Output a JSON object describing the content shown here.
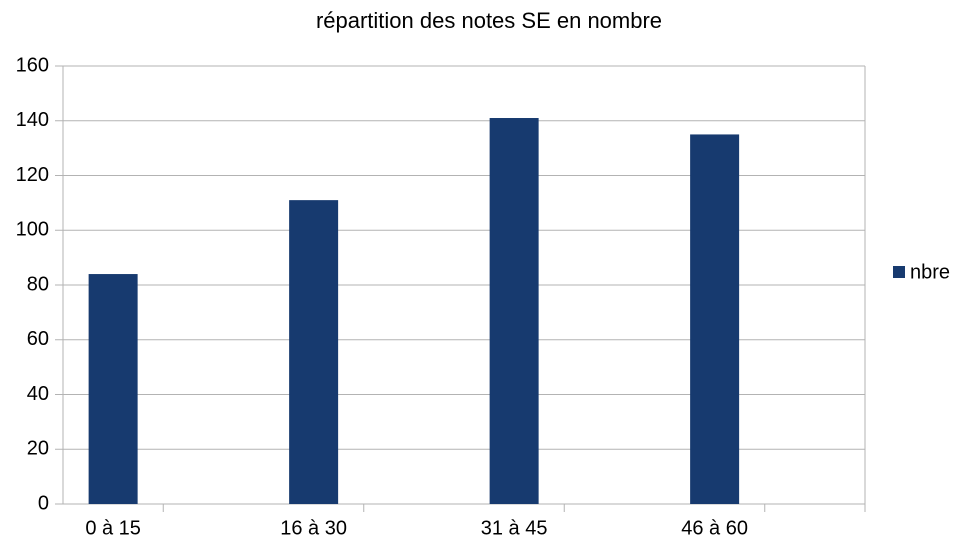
{
  "chart_data": {
    "type": "bar",
    "title": "répartition des notes SE en nombre",
    "categories": [
      "0 à 15",
      "16 à 30",
      "31 à 45",
      "46 à 60"
    ],
    "series": [
      {
        "name": "nbre",
        "color": "#173a6f",
        "values": [
          84,
          111,
          141,
          135
        ]
      }
    ],
    "ylim": [
      0,
      160
    ],
    "yticks": [
      0,
      20,
      40,
      60,
      80,
      100,
      120,
      140,
      160
    ],
    "grid": true,
    "legend": "right"
  }
}
